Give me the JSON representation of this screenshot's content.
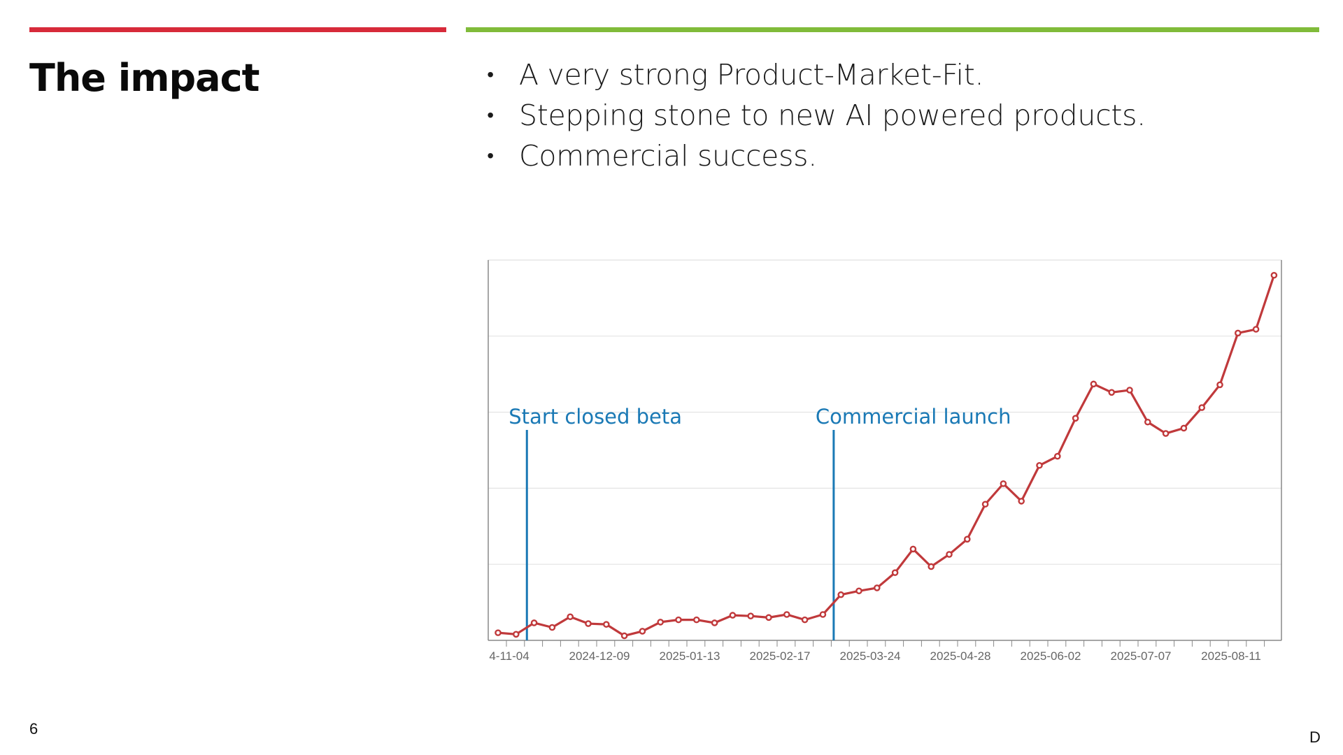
{
  "slide": {
    "title": "The impact",
    "bullet_marker": "•",
    "bullets": [
      "A very strong Product-Market-Fit.",
      "Stepping stone to new AI powered products.",
      "Commercial success."
    ],
    "page_number": "6",
    "corner_mark": "D",
    "colors": {
      "red_rule": "#d72a3a",
      "green_rule": "#80bb3a"
    }
  },
  "chart_data": {
    "type": "line",
    "title": "",
    "xlabel": "",
    "ylabel": "",
    "x_tick_labels": [
      "4-11-04",
      "2024-12-09",
      "2025-01-13",
      "2025-02-17",
      "2025-03-24",
      "2025-04-28",
      "2025-06-02",
      "2025-07-07",
      "2025-08-11"
    ],
    "y_tick_labels_visible": false,
    "grid": true,
    "ylim": [
      0,
      5
    ],
    "series": [
      {
        "color": "#c0393b",
        "values": [
          0.1,
          0.08,
          0.23,
          0.17,
          0.31,
          0.22,
          0.21,
          0.06,
          0.12,
          0.24,
          0.27,
          0.27,
          0.23,
          0.33,
          0.32,
          0.3,
          0.34,
          0.27,
          0.34,
          0.6,
          0.65,
          0.69,
          0.89,
          1.2,
          0.97,
          1.13,
          1.33,
          1.79,
          2.06,
          1.83,
          2.3,
          2.42,
          2.92,
          3.37,
          3.26,
          3.29,
          2.87,
          2.72,
          2.79,
          3.06,
          3.36,
          4.04,
          4.09,
          4.8
        ]
      }
    ],
    "annotations": [
      {
        "label": "Start closed beta",
        "color": "#1a79b5",
        "at_index": 1.6
      },
      {
        "label": "Commercial launch",
        "color": "#1a79b5",
        "at_index": 18.6
      }
    ]
  }
}
